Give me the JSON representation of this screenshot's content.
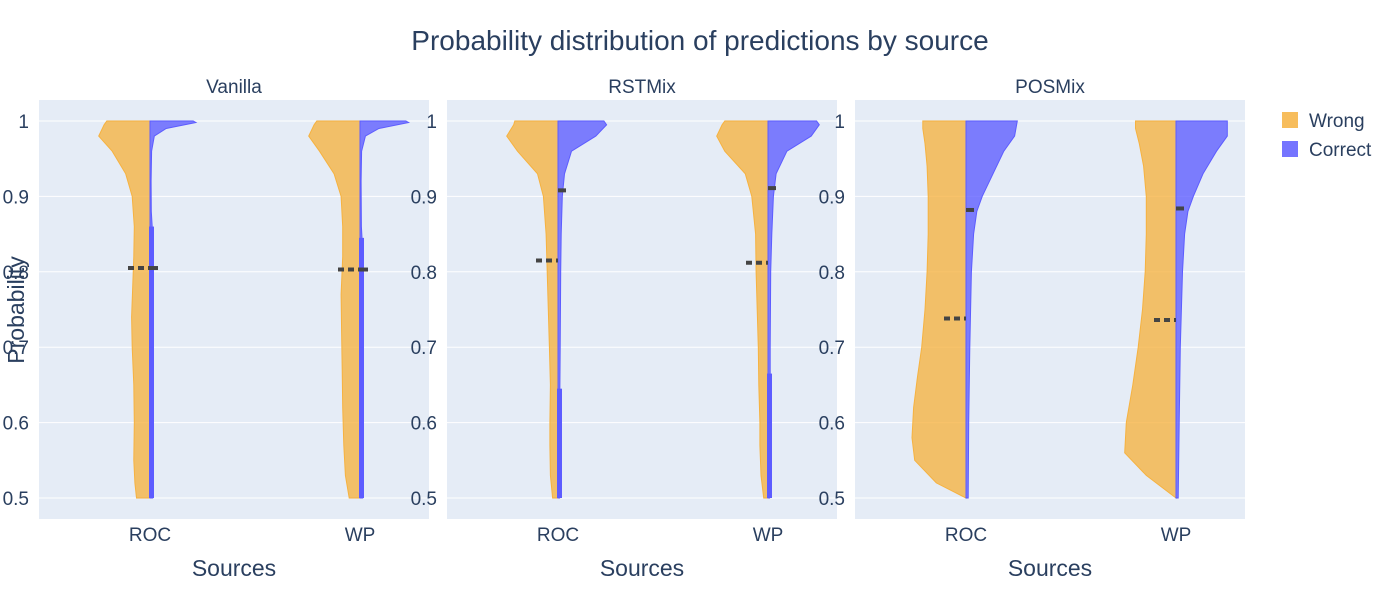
{
  "chart_data": {
    "type": "violin",
    "title": "Probability distribution of predictions by source",
    "xlabel": "Sources",
    "ylabel": "Probability",
    "ylim": [
      0.5,
      1.0
    ],
    "yticks": [
      0.5,
      0.6,
      0.7,
      0.8,
      0.9,
      1
    ],
    "ytick_labels": [
      "0.5",
      "0.6",
      "0.7",
      "0.8",
      "0.9",
      "1"
    ],
    "categories": [
      "ROC",
      "WP"
    ],
    "legend": [
      {
        "name": "Wrong",
        "color": "#f6b240"
      },
      {
        "name": "Correct",
        "color": "#5d5cff"
      }
    ],
    "legend_position": "top-right",
    "grid": true,
    "panels": [
      {
        "title": "Vanilla",
        "violins": {
          "ROC": {
            "wrong": {
              "mean": 0.805,
              "profile": [
                [
                  0.5,
                  0.25
                ],
                [
                  0.52,
                  0.28
                ],
                [
                  0.55,
                  0.3
                ],
                [
                  0.6,
                  0.29
                ],
                [
                  0.65,
                  0.3
                ],
                [
                  0.7,
                  0.33
                ],
                [
                  0.74,
                  0.34
                ],
                [
                  0.78,
                  0.32
                ],
                [
                  0.82,
                  0.3
                ],
                [
                  0.86,
                  0.29
                ],
                [
                  0.9,
                  0.33
                ],
                [
                  0.93,
                  0.45
                ],
                [
                  0.96,
                  0.7
                ],
                [
                  0.98,
                  0.95
                ],
                [
                  0.995,
                  0.85
                ],
                [
                  1.0,
                  0.8
                ]
              ]
            },
            "correct": {
              "mean": 0.805,
              "profile": [
                [
                  0.5,
                  0.05
                ],
                [
                  0.55,
                  0.04
                ],
                [
                  0.6,
                  0.04
                ],
                [
                  0.7,
                  0.04
                ],
                [
                  0.8,
                  0.04
                ],
                [
                  0.86,
                  0.04
                ],
                [
                  0.88,
                  0.025
                ],
                [
                  0.92,
                  0.02
                ],
                [
                  0.96,
                  0.03
                ],
                [
                  0.98,
                  0.08
                ],
                [
                  0.99,
                  0.3
                ],
                [
                  0.998,
                  0.85
                ],
                [
                  1.0,
                  0.8
                ]
              ]
            },
            "correct_box": [
              0.5,
              0.86
            ]
          },
          "WP": {
            "wrong": {
              "mean": 0.803,
              "profile": [
                [
                  0.5,
                  0.2
                ],
                [
                  0.53,
                  0.27
                ],
                [
                  0.57,
                  0.3
                ],
                [
                  0.62,
                  0.32
                ],
                [
                  0.67,
                  0.33
                ],
                [
                  0.72,
                  0.34
                ],
                [
                  0.77,
                  0.35
                ],
                [
                  0.82,
                  0.32
                ],
                [
                  0.86,
                  0.32
                ],
                [
                  0.9,
                  0.35
                ],
                [
                  0.93,
                  0.48
                ],
                [
                  0.96,
                  0.75
                ],
                [
                  0.98,
                  0.95
                ],
                [
                  0.995,
                  0.85
                ],
                [
                  1.0,
                  0.8
                ]
              ]
            },
            "correct": {
              "mean": 0.803,
              "profile": [
                [
                  0.5,
                  0.05
                ],
                [
                  0.6,
                  0.04
                ],
                [
                  0.7,
                  0.04
                ],
                [
                  0.8,
                  0.04
                ],
                [
                  0.84,
                  0.04
                ],
                [
                  0.86,
                  0.025
                ],
                [
                  0.92,
                  0.02
                ],
                [
                  0.96,
                  0.03
                ],
                [
                  0.98,
                  0.1
                ],
                [
                  0.99,
                  0.35
                ],
                [
                  0.998,
                  0.9
                ],
                [
                  1.0,
                  0.85
                ]
              ]
            },
            "correct_box": [
              0.5,
              0.845
            ]
          }
        }
      },
      {
        "title": "RSTMix",
        "violins": {
          "ROC": {
            "wrong": {
              "mean": 0.815,
              "profile": [
                [
                  0.5,
                  0.1
                ],
                [
                  0.53,
                  0.14
                ],
                [
                  0.57,
                  0.15
                ],
                [
                  0.6,
                  0.15
                ],
                [
                  0.65,
                  0.14
                ],
                [
                  0.7,
                  0.16
                ],
                [
                  0.75,
                  0.18
                ],
                [
                  0.8,
                  0.2
                ],
                [
                  0.85,
                  0.22
                ],
                [
                  0.9,
                  0.27
                ],
                [
                  0.93,
                  0.38
                ],
                [
                  0.96,
                  0.75
                ],
                [
                  0.98,
                  0.95
                ],
                [
                  0.995,
                  0.82
                ],
                [
                  1.0,
                  0.8
                ]
              ]
            },
            "correct": {
              "mean": 0.908,
              "profile": [
                [
                  0.5,
                  0.03
                ],
                [
                  0.6,
                  0.03
                ],
                [
                  0.7,
                  0.04
                ],
                [
                  0.8,
                  0.05
                ],
                [
                  0.85,
                  0.06
                ],
                [
                  0.9,
                  0.08
                ],
                [
                  0.93,
                  0.12
                ],
                [
                  0.96,
                  0.25
                ],
                [
                  0.98,
                  0.7
                ],
                [
                  0.995,
                  0.9
                ],
                [
                  1.0,
                  0.85
                ]
              ]
            },
            "correct_box": [
              0.5,
              0.645
            ]
          },
          "WP": {
            "wrong": {
              "mean": 0.812,
              "profile": [
                [
                  0.5,
                  0.08
                ],
                [
                  0.53,
                  0.13
                ],
                [
                  0.57,
                  0.15
                ],
                [
                  0.6,
                  0.15
                ],
                [
                  0.65,
                  0.17
                ],
                [
                  0.7,
                  0.18
                ],
                [
                  0.75,
                  0.2
                ],
                [
                  0.8,
                  0.22
                ],
                [
                  0.85,
                  0.23
                ],
                [
                  0.9,
                  0.3
                ],
                [
                  0.93,
                  0.42
                ],
                [
                  0.96,
                  0.8
                ],
                [
                  0.98,
                  0.95
                ],
                [
                  0.995,
                  0.85
                ],
                [
                  1.0,
                  0.8
                ]
              ]
            },
            "correct": {
              "mean": 0.911,
              "profile": [
                [
                  0.5,
                  0.03
                ],
                [
                  0.6,
                  0.04
                ],
                [
                  0.7,
                  0.04
                ],
                [
                  0.8,
                  0.05
                ],
                [
                  0.85,
                  0.07
                ],
                [
                  0.9,
                  0.1
                ],
                [
                  0.93,
                  0.15
                ],
                [
                  0.96,
                  0.35
                ],
                [
                  0.98,
                  0.8
                ],
                [
                  0.995,
                  0.95
                ],
                [
                  1.0,
                  0.9
                ]
              ]
            },
            "correct_box": [
              0.5,
              0.665
            ]
          }
        }
      },
      {
        "title": "POSMix",
        "violins": {
          "ROC": {
            "wrong": {
              "mean": 0.738,
              "profile": [
                [
                  0.5,
                  0.0
                ],
                [
                  0.52,
                  0.55
                ],
                [
                  0.55,
                  0.95
                ],
                [
                  0.58,
                  1.0
                ],
                [
                  0.62,
                  0.97
                ],
                [
                  0.66,
                  0.9
                ],
                [
                  0.7,
                  0.82
                ],
                [
                  0.75,
                  0.76
                ],
                [
                  0.8,
                  0.72
                ],
                [
                  0.85,
                  0.7
                ],
                [
                  0.9,
                  0.7
                ],
                [
                  0.94,
                  0.72
                ],
                [
                  0.97,
                  0.76
                ],
                [
                  0.99,
                  0.8
                ],
                [
                  1.0,
                  0.8
                ]
              ]
            },
            "correct": {
              "mean": 0.882,
              "profile": [
                [
                  0.5,
                  0.04
                ],
                [
                  0.6,
                  0.05
                ],
                [
                  0.7,
                  0.07
                ],
                [
                  0.8,
                  0.1
                ],
                [
                  0.85,
                  0.14
                ],
                [
                  0.88,
                  0.2
                ],
                [
                  0.9,
                  0.3
                ],
                [
                  0.93,
                  0.5
                ],
                [
                  0.96,
                  0.7
                ],
                [
                  0.98,
                  0.9
                ],
                [
                  1.0,
                  0.95
                ]
              ]
            },
            "correct_box": [
              0.5,
              0.5
            ]
          },
          "WP": {
            "wrong": {
              "mean": 0.736,
              "profile": [
                [
                  0.5,
                  0.0
                ],
                [
                  0.53,
                  0.55
                ],
                [
                  0.56,
                  0.95
                ],
                [
                  0.6,
                  0.92
                ],
                [
                  0.65,
                  0.8
                ],
                [
                  0.7,
                  0.7
                ],
                [
                  0.75,
                  0.62
                ],
                [
                  0.8,
                  0.57
                ],
                [
                  0.85,
                  0.55
                ],
                [
                  0.9,
                  0.55
                ],
                [
                  0.94,
                  0.6
                ],
                [
                  0.97,
                  0.68
                ],
                [
                  0.99,
                  0.75
                ],
                [
                  1.0,
                  0.75
                ]
              ]
            },
            "correct": {
              "mean": 0.884,
              "profile": [
                [
                  0.5,
                  0.04
                ],
                [
                  0.6,
                  0.06
                ],
                [
                  0.7,
                  0.08
                ],
                [
                  0.8,
                  0.12
                ],
                [
                  0.85,
                  0.16
                ],
                [
                  0.88,
                  0.22
                ],
                [
                  0.9,
                  0.32
                ],
                [
                  0.93,
                  0.5
                ],
                [
                  0.96,
                  0.75
                ],
                [
                  0.98,
                  0.95
                ],
                [
                  1.0,
                  0.95
                ]
              ]
            },
            "correct_box": [
              0.5,
              0.5
            ]
          }
        }
      }
    ]
  }
}
